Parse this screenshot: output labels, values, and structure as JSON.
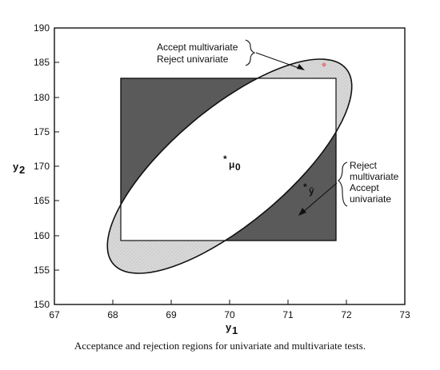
{
  "axes": {
    "x_ticks": [
      "67",
      "68",
      "69",
      "70",
      "71",
      "72",
      "73"
    ],
    "y_ticks": [
      "150",
      "155",
      "160",
      "165",
      "170",
      "175",
      "180",
      "185",
      "190"
    ],
    "x_title_main": "y",
    "x_title_sub": "1",
    "y_title_main": "y",
    "y_title_sub": "2"
  },
  "annotations": {
    "top_line1": "Accept multivariate",
    "top_line2": "Reject univariate",
    "right_line1": "Reject",
    "right_line2": "multivariate",
    "right_line3": "Accept",
    "right_line4": "univariate"
  },
  "points": {
    "mu_star": "*",
    "mu_symbol": "μ",
    "mu_sub": "0",
    "ybar_star": "*",
    "ybar_symbol": "ȳ"
  },
  "caption": "Acceptance and rejection regions for univariate and multivariate tests.",
  "colors": {
    "dark_region": "#5a5a5a",
    "light_region": "#d8d8d8",
    "outline": "#111111",
    "red_dot": "#e08080"
  }
}
